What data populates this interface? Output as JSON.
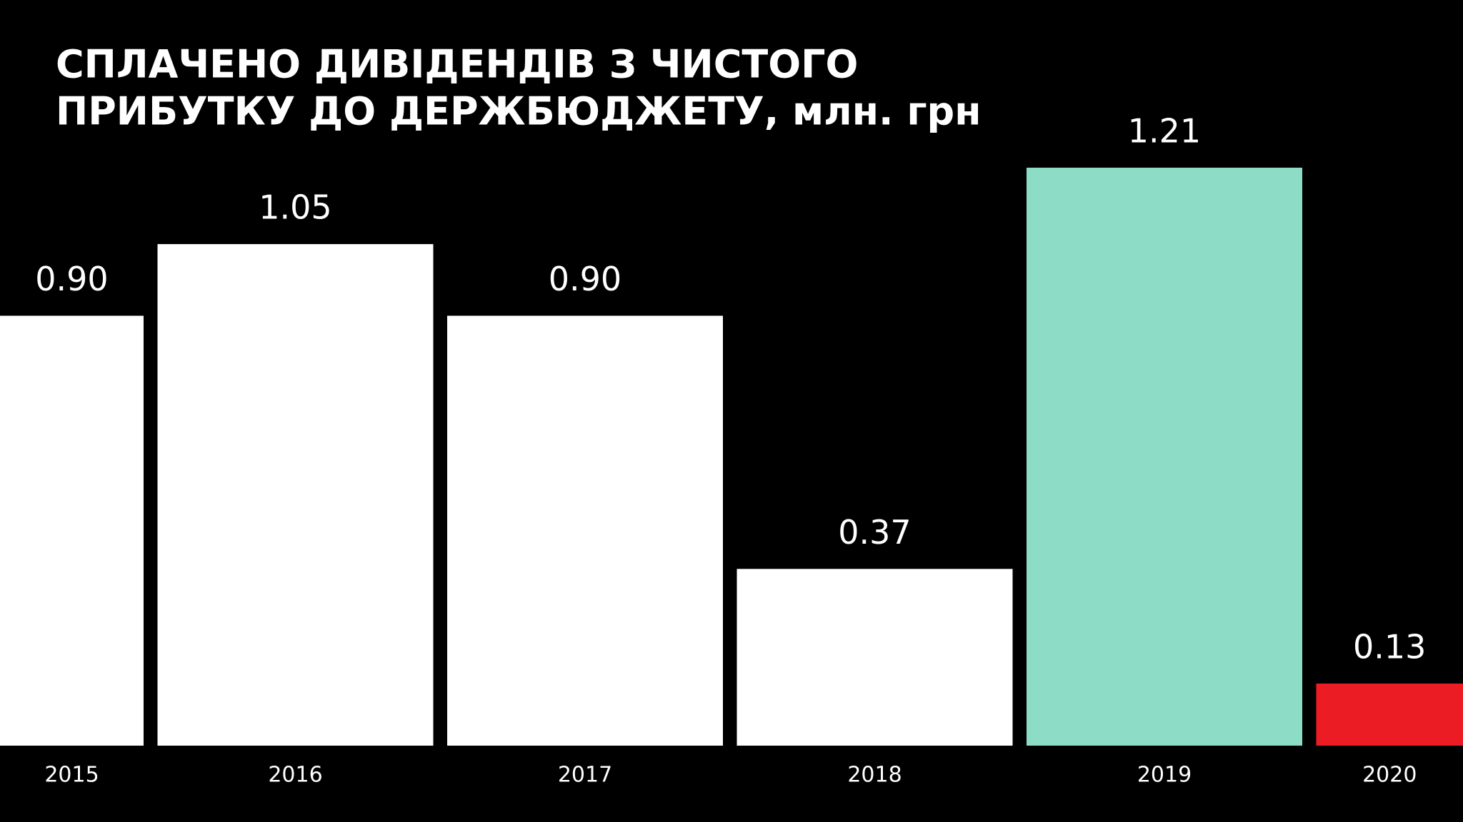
{
  "chart_data": {
    "type": "bar",
    "title": [
      "СПЛАЧЕНО ДИВІДЕНДІВ З ЧИСТОГО",
      "ПРИБУТКУ ДО ДЕРЖБЮДЖЕТУ, млн. грн"
    ],
    "categories": [
      "2015",
      "2016",
      "2017",
      "2018",
      "2019",
      "2020"
    ],
    "values": [
      0.9,
      1.05,
      0.9,
      0.37,
      1.21,
      0.13
    ],
    "value_labels": [
      "0.90",
      "1.05",
      "0.90",
      "0.37",
      "1.21",
      "0.13"
    ],
    "colors": [
      "#ffffff",
      "#ffffff",
      "#ffffff",
      "#ffffff",
      "#8ddcc6",
      "#ec1c24"
    ]
  }
}
